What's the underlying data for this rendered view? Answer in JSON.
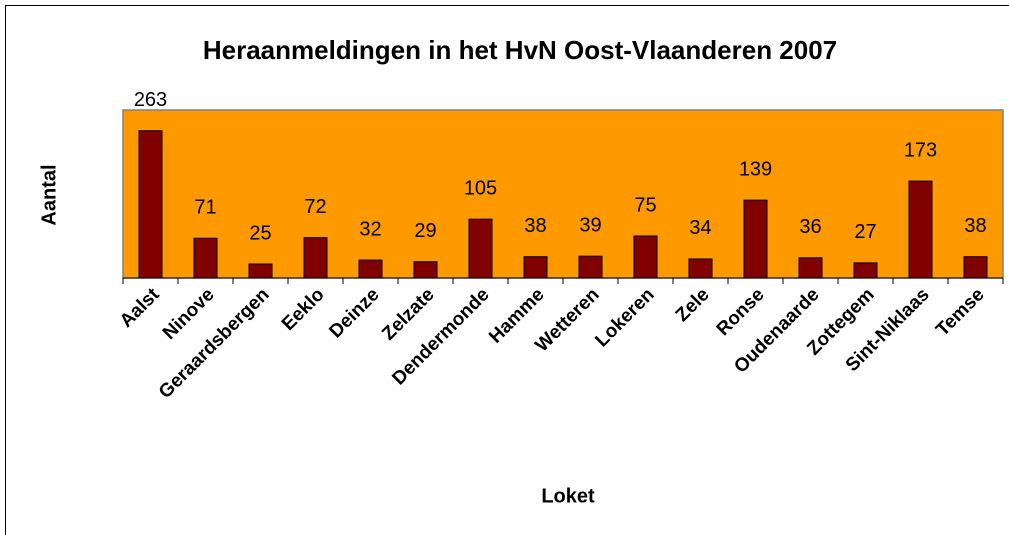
{
  "chart_data": {
    "type": "bar",
    "title": "Heraanmeldingen in het HvN Oost-Vlaanderen 2007",
    "x_label": "Loket",
    "y_label": "Aantal",
    "categories": [
      "Aalst",
      "Ninove",
      "Geraardsbergen",
      "Eeklo",
      "Deinze",
      "Zelzate",
      "Dendermonde",
      "Hamme",
      "Wetteren",
      "Lokeren",
      "Zele",
      "Ronse",
      "Oudenaarde",
      "Zottegem",
      "Sint-Niklaas",
      "Temse"
    ],
    "values": [
      263,
      71,
      25,
      72,
      32,
      29,
      105,
      38,
      39,
      75,
      34,
      139,
      36,
      27,
      173,
      38
    ],
    "color": "#800000",
    "background": "#ff9900",
    "ylim": [
      0,
      300
    ],
    "yticks": []
  }
}
